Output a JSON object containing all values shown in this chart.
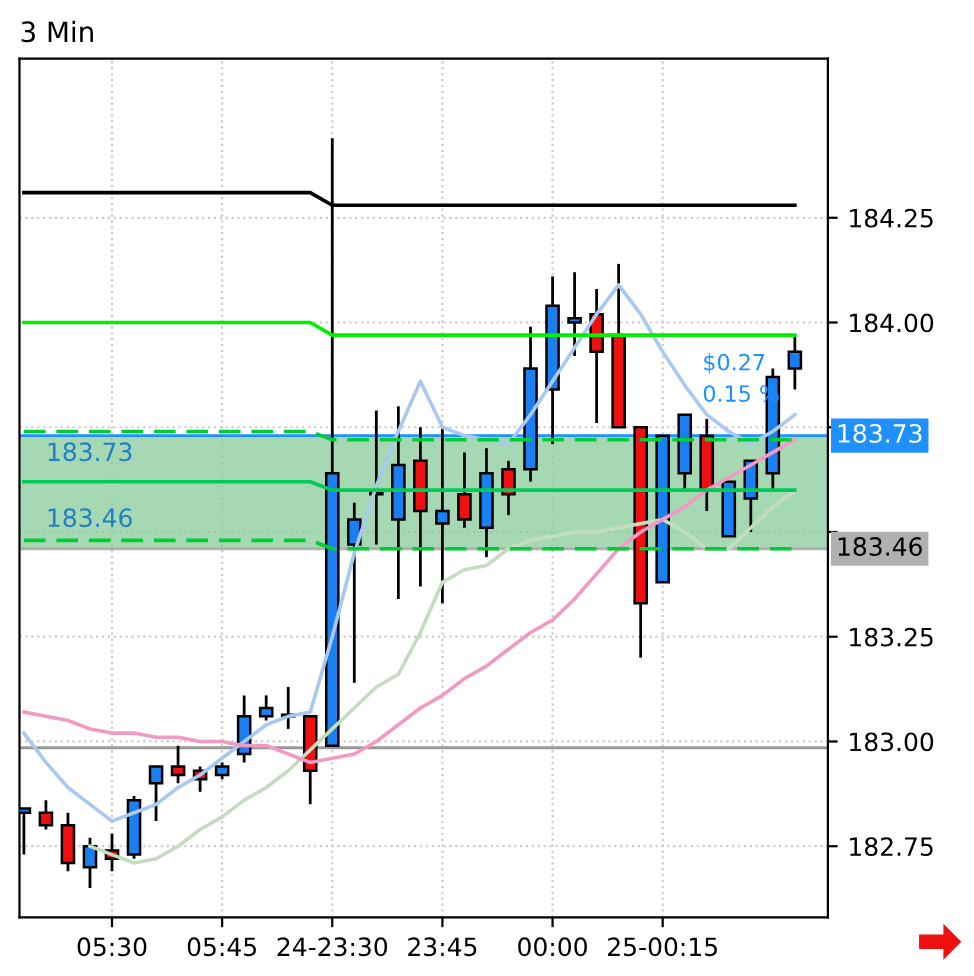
{
  "chart_data": {
    "type": "candlestick",
    "title": "3 Min",
    "categories": [
      null,
      null,
      null,
      null,
      "05:30",
      null,
      null,
      null,
      null,
      "05:45",
      null,
      null,
      null,
      null,
      "24-23:30",
      null,
      null,
      null,
      null,
      "23:45",
      null,
      null,
      null,
      null,
      "00:00",
      null,
      null,
      null,
      null,
      "25-00:15",
      null,
      null,
      null,
      null,
      null,
      null
    ],
    "ohlc": [
      [
        182.83,
        182.84,
        182.73,
        182.84
      ],
      [
        182.83,
        182.86,
        182.79,
        182.8
      ],
      [
        182.8,
        182.83,
        182.69,
        182.71
      ],
      [
        182.7,
        182.77,
        182.65,
        182.75
      ],
      [
        182.74,
        182.78,
        182.69,
        182.72
      ],
      [
        182.73,
        182.87,
        182.72,
        182.86
      ],
      [
        182.9,
        182.94,
        182.81,
        182.94
      ],
      [
        182.94,
        182.99,
        182.9,
        182.92
      ],
      [
        182.93,
        182.94,
        182.88,
        182.91
      ],
      [
        182.92,
        182.95,
        182.91,
        182.94
      ],
      [
        182.97,
        183.11,
        182.95,
        183.06
      ],
      [
        183.06,
        183.11,
        183.05,
        183.08
      ],
      [
        183.06,
        183.13,
        183.03,
        183.06
      ],
      [
        183.06,
        183.06,
        182.85,
        182.93
      ],
      [
        182.99,
        184.44,
        182.99,
        183.64
      ],
      [
        183.47,
        183.57,
        183.14,
        183.53
      ],
      [
        183.59,
        183.79,
        183.47,
        183.59
      ],
      [
        183.53,
        183.8,
        183.34,
        183.66
      ],
      [
        183.67,
        183.75,
        183.37,
        183.55
      ],
      [
        183.52,
        183.75,
        183.33,
        183.55
      ],
      [
        183.59,
        183.69,
        183.51,
        183.53
      ],
      [
        183.51,
        183.7,
        183.44,
        183.64
      ],
      [
        183.65,
        183.67,
        183.54,
        183.59
      ],
      [
        183.65,
        183.99,
        183.62,
        183.89
      ],
      [
        183.84,
        184.11,
        183.71,
        184.04
      ],
      [
        184.0,
        184.12,
        183.92,
        184.01
      ],
      [
        184.02,
        184.08,
        183.76,
        183.93
      ],
      [
        183.97,
        184.14,
        183.75,
        183.75
      ],
      [
        183.75,
        183.75,
        183.2,
        183.33
      ],
      [
        183.38,
        183.73,
        183.38,
        183.73
      ],
      [
        183.64,
        183.78,
        183.6,
        183.78
      ],
      [
        183.73,
        183.77,
        183.55,
        183.6
      ],
      [
        183.49,
        183.62,
        183.49,
        183.62
      ],
      [
        183.58,
        183.67,
        183.5,
        183.67
      ],
      [
        183.64,
        183.89,
        183.6,
        183.87
      ],
      [
        183.89,
        183.97,
        183.84,
        183.93
      ]
    ],
    "colors": [
      "#1a7ff0",
      "#ee1111",
      "#ee1111",
      "#1a7ff0",
      "#ee1111",
      "#1a7ff0",
      "#1a7ff0",
      "#ee1111",
      "#ee1111",
      "#1a7ff0",
      "#1a7ff0",
      "#1a7ff0",
      "#1a7ff0",
      "#ee1111",
      "#1a7ff0",
      "#1a7ff0",
      "#1a7ff0",
      "#1a7ff0",
      "#ee1111",
      "#1a7ff0",
      "#ee1111",
      "#1a7ff0",
      "#ee1111",
      "#1a7ff0",
      "#1a7ff0",
      "#1a7ff0",
      "#ee1111",
      "#ee1111",
      "#ee1111",
      "#1a7ff0",
      "#1a7ff0",
      "#ee1111",
      "#1a7ff0",
      "#1a7ff0",
      "#1a7ff0",
      "#1a7ff0"
    ],
    "series": [
      {
        "type": "line",
        "color": "#a9c9ee",
        "values": [
          183.02,
          182.95,
          182.89,
          182.85,
          182.81,
          182.83,
          182.85,
          182.89,
          182.92,
          182.96,
          183.0,
          183.04,
          183.06,
          183.07,
          183.25,
          183.45,
          183.61,
          183.74,
          183.86,
          183.75,
          183.73,
          183.72,
          183.71,
          183.78,
          183.86,
          183.94,
          184.02,
          184.09,
          184.02,
          183.93,
          183.85,
          183.78,
          183.74,
          183.71,
          183.74,
          183.78
        ]
      },
      {
        "type": "line",
        "color": "#c4dcc0",
        "values": [
          null,
          null,
          null,
          182.75,
          182.73,
          182.71,
          182.72,
          182.75,
          182.79,
          182.82,
          182.86,
          182.89,
          182.93,
          182.98,
          183.03,
          183.08,
          183.13,
          183.16,
          183.26,
          183.38,
          183.41,
          183.42,
          183.46,
          183.48,
          183.49,
          183.5,
          183.5,
          183.51,
          183.52,
          183.53,
          183.5,
          183.46,
          183.46,
          183.51,
          183.56,
          183.6
        ]
      },
      {
        "type": "line",
        "color": "#f29ac4",
        "values": [
          183.07,
          183.06,
          183.05,
          183.03,
          183.02,
          183.02,
          183.01,
          183.01,
          183.0,
          183.0,
          182.99,
          182.99,
          182.97,
          182.95,
          182.96,
          182.97,
          183.0,
          183.04,
          183.08,
          183.11,
          183.15,
          183.18,
          183.22,
          183.26,
          183.29,
          183.34,
          183.4,
          183.46,
          183.5,
          183.53,
          183.56,
          183.6,
          183.63,
          183.66,
          183.69,
          183.72
        ]
      },
      {
        "type": "line",
        "color": "#000000",
        "values": [
          184.31,
          184.31,
          184.31,
          184.31,
          184.31,
          184.31,
          184.31,
          184.31,
          184.31,
          184.31,
          184.31,
          184.31,
          184.31,
          184.31,
          184.28,
          184.28,
          184.28,
          184.28,
          184.28,
          184.28,
          184.28,
          184.28,
          184.28,
          184.28,
          184.28,
          184.28,
          184.28,
          184.28,
          184.28,
          184.28,
          184.28,
          184.28,
          184.28,
          184.28,
          184.28,
          184.28
        ]
      },
      {
        "type": "line",
        "color": "#00ee00",
        "values": [
          184.0,
          184.0,
          184.0,
          184.0,
          184.0,
          184.0,
          184.0,
          184.0,
          184.0,
          184.0,
          184.0,
          184.0,
          184.0,
          184.0,
          183.97,
          183.97,
          183.97,
          183.97,
          183.97,
          183.97,
          183.97,
          183.97,
          183.97,
          183.97,
          183.97,
          183.97,
          183.97,
          183.97,
          183.97,
          183.97,
          183.97,
          183.97,
          183.97,
          183.97,
          183.97,
          183.97
        ]
      },
      {
        "type": "line",
        "color": "#00cc33",
        "line_style": "dashed",
        "values": [
          183.74,
          183.74,
          183.74,
          183.74,
          183.74,
          183.74,
          183.74,
          183.74,
          183.74,
          183.74,
          183.74,
          183.74,
          183.74,
          183.74,
          183.72,
          183.72,
          183.72,
          183.72,
          183.72,
          183.72,
          183.72,
          183.72,
          183.72,
          183.72,
          183.72,
          183.72,
          183.72,
          183.72,
          183.72,
          183.72,
          183.72,
          183.72,
          183.72,
          183.72,
          183.72,
          183.72
        ]
      },
      {
        "type": "line",
        "color": "#00cc55",
        "values": [
          183.62,
          183.62,
          183.62,
          183.62,
          183.62,
          183.62,
          183.62,
          183.62,
          183.62,
          183.62,
          183.62,
          183.62,
          183.62,
          183.62,
          183.6,
          183.6,
          183.6,
          183.6,
          183.6,
          183.6,
          183.6,
          183.6,
          183.6,
          183.6,
          183.6,
          183.6,
          183.6,
          183.6,
          183.6,
          183.6,
          183.6,
          183.6,
          183.6,
          183.6,
          183.6,
          183.6
        ]
      },
      {
        "type": "line",
        "color": "#00cc33",
        "line_style": "dashed",
        "values": [
          183.48,
          183.48,
          183.48,
          183.48,
          183.48,
          183.48,
          183.48,
          183.48,
          183.48,
          183.48,
          183.48,
          183.48,
          183.48,
          183.48,
          183.46,
          183.46,
          183.46,
          183.46,
          183.46,
          183.46,
          183.46,
          183.46,
          183.46,
          183.46,
          183.46,
          183.46,
          183.46,
          183.46,
          183.46,
          183.46,
          183.46,
          183.46,
          183.46,
          183.46,
          183.46,
          183.46
        ]
      }
    ],
    "bands": [
      {
        "axis": "y",
        "from": 183.46,
        "to": 183.73,
        "color": "#88cc99"
      }
    ],
    "ref_lines": [
      {
        "axis": "y",
        "value": 183.73,
        "label": "183.73",
        "color": "#1e90ff"
      },
      {
        "axis": "y",
        "value": 183.46,
        "label": "183.46",
        "color": "#b0b0b0"
      },
      {
        "axis": "y",
        "value": 182.985,
        "color": "#999999"
      }
    ],
    "annotations": [
      "183.73",
      "183.46",
      "$0.27",
      "0.15 %"
    ],
    "ylim": [
      182.58,
      184.63
    ],
    "yticks": [
      {
        "value": 182.75,
        "label": "182.75"
      },
      {
        "value": 183.0,
        "label": "183.00"
      },
      {
        "value": 183.25,
        "label": "183.25"
      },
      {
        "value": 183.5,
        "label": null
      },
      {
        "value": 183.75,
        "label": null
      },
      {
        "value": 184.0,
        "label": "184.00"
      },
      {
        "value": 184.25,
        "label": "184.25"
      }
    ],
    "grid": true
  }
}
